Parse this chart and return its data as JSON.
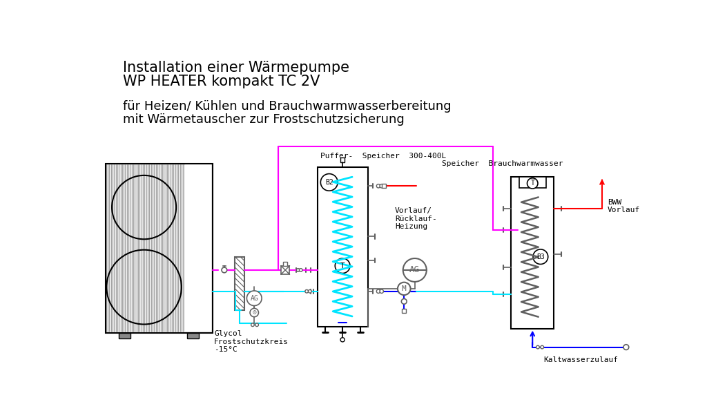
{
  "title_line1": "Installation einer Wärmepumpe",
  "title_line2": "WP HEATER kompakt TC 2V",
  "subtitle_line1": "für Heizen/ Kühlen und Brauchwarmwasserbereitung",
  "subtitle_line2": "mit Wärmetauscher zur Frostschutzsicherung",
  "label_puffer": "Puffer-  Speicher  300-400L",
  "label_vorlauf": "Vorlauf/\nRücklauf-\nHeizung",
  "label_glycol": "Glycol\nFrostschutzkreis\n-15°C",
  "label_speicher_bww": "Speicher  Brauchwarmwasser",
  "label_bww": "BWW\nVorlauf",
  "label_kaltwasser": "Kaltwasserzulauf",
  "label_b2": "B2",
  "label_b3": "B3",
  "label_ag1": "AG",
  "label_ag2": "AG",
  "label_m": "M",
  "label_t": "T",
  "color_magenta": "#FF00FF",
  "color_cyan": "#00E5FF",
  "color_red": "#FF0000",
  "color_blue": "#0000FF",
  "color_dark": "#606060",
  "color_black": "#000000",
  "bg_color": "#FFFFFF"
}
